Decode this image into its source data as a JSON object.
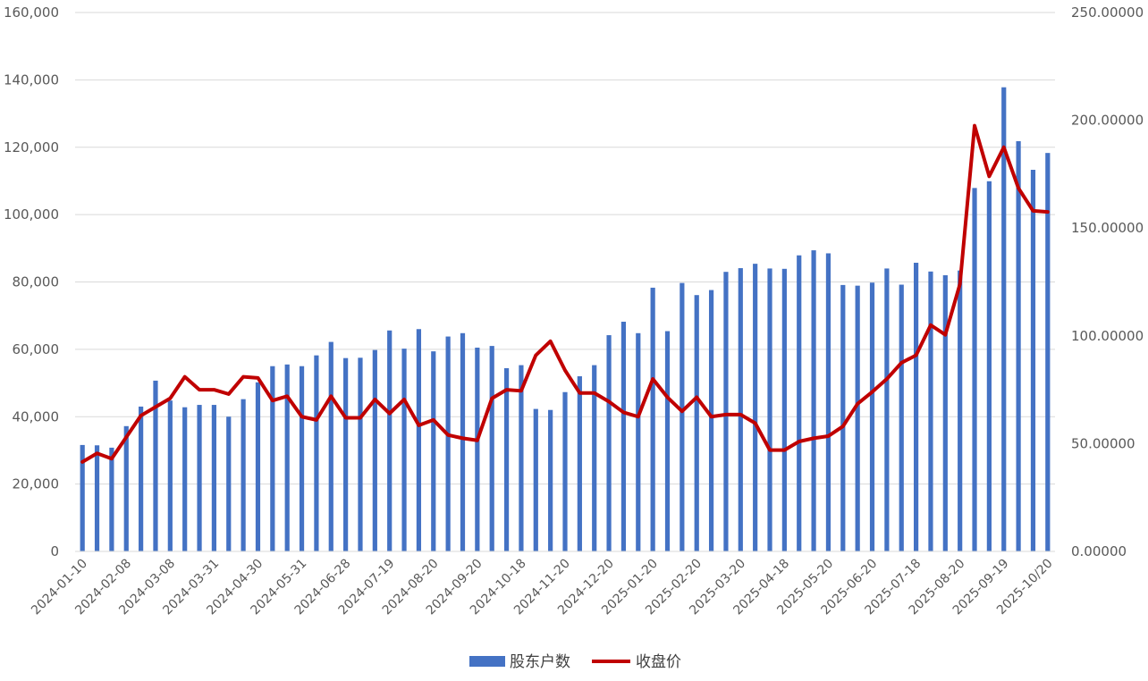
{
  "chart_data": {
    "type": "bar+line",
    "title": "",
    "x_tick_labels": [
      "2024-01-10",
      "2024-02-08",
      "2024-03-08",
      "2024-03-31",
      "2024-04-30",
      "2024-05-31",
      "2024-06-28",
      "2024-07-19",
      "2024-08-20",
      "2024-09-20",
      "2024-10-18",
      "2024-11-20",
      "2024-12-20",
      "2025-01-20",
      "2025-02-20",
      "2025-03-20",
      "2025-04-18",
      "2025-05-20",
      "2025-06-20",
      "2025-07-18",
      "2025-08-20",
      "2025-09-19",
      "2025-10/20"
    ],
    "y_left": {
      "ylim": [
        0,
        160000
      ],
      "ticks": [
        "0",
        "20,000",
        "40,000",
        "60,000",
        "80,000",
        "100,000",
        "120,000",
        "140,000",
        "160,000"
      ]
    },
    "y_right": {
      "ylim": [
        0,
        250
      ],
      "ticks": [
        "0.00000",
        "50.00000",
        "100.00000",
        "150.00000",
        "200.00000",
        "250.00000"
      ]
    },
    "grid": true,
    "legend_position": "bottom",
    "series": [
      {
        "name": "股东户数",
        "type": "bar",
        "axis": "left",
        "color": "#4472C4",
        "values": [
          31600,
          31500,
          30800,
          37200,
          43000,
          50700,
          44800,
          42800,
          43500,
          43500,
          40000,
          45200,
          50200,
          55000,
          55500,
          55000,
          58200,
          62200,
          57400,
          57500,
          59800,
          65600,
          60200,
          66000,
          59400,
          63800,
          64800,
          60500,
          61000,
          54400,
          55300,
          42300,
          42000,
          47300,
          52000,
          55300,
          64200,
          68200,
          64800,
          78300,
          65400,
          79700,
          76100,
          77600,
          83000,
          84100,
          85400,
          84000,
          83900,
          87900,
          89400,
          88500,
          79100,
          78900,
          79800,
          84000,
          79200,
          85700,
          83100,
          82000,
          83400,
          107900,
          109900,
          137800,
          121800,
          113300,
          118300
        ]
      },
      {
        "name": "收盘价",
        "type": "line",
        "axis": "right",
        "color": "#C00000",
        "values": [
          41.5,
          45.5,
          43,
          53,
          63,
          67,
          71,
          81,
          75,
          75,
          73,
          81,
          80.5,
          70,
          72,
          62.5,
          61,
          72,
          62,
          62,
          70.5,
          64,
          70.5,
          58.5,
          61,
          54,
          52.5,
          51.5,
          71,
          75,
          74.5,
          91,
          97.5,
          84,
          73.5,
          73.5,
          69.5,
          64.5,
          62.5,
          80,
          71.5,
          65,
          71.5,
          62.5,
          63.5,
          63.5,
          59.5,
          47,
          47,
          51,
          52.5,
          53.5,
          58,
          68.5,
          74,
          80,
          87.5,
          91,
          105,
          100.5,
          124,
          197.5,
          174,
          187.5,
          168.5,
          158,
          157.5
        ]
      }
    ]
  }
}
